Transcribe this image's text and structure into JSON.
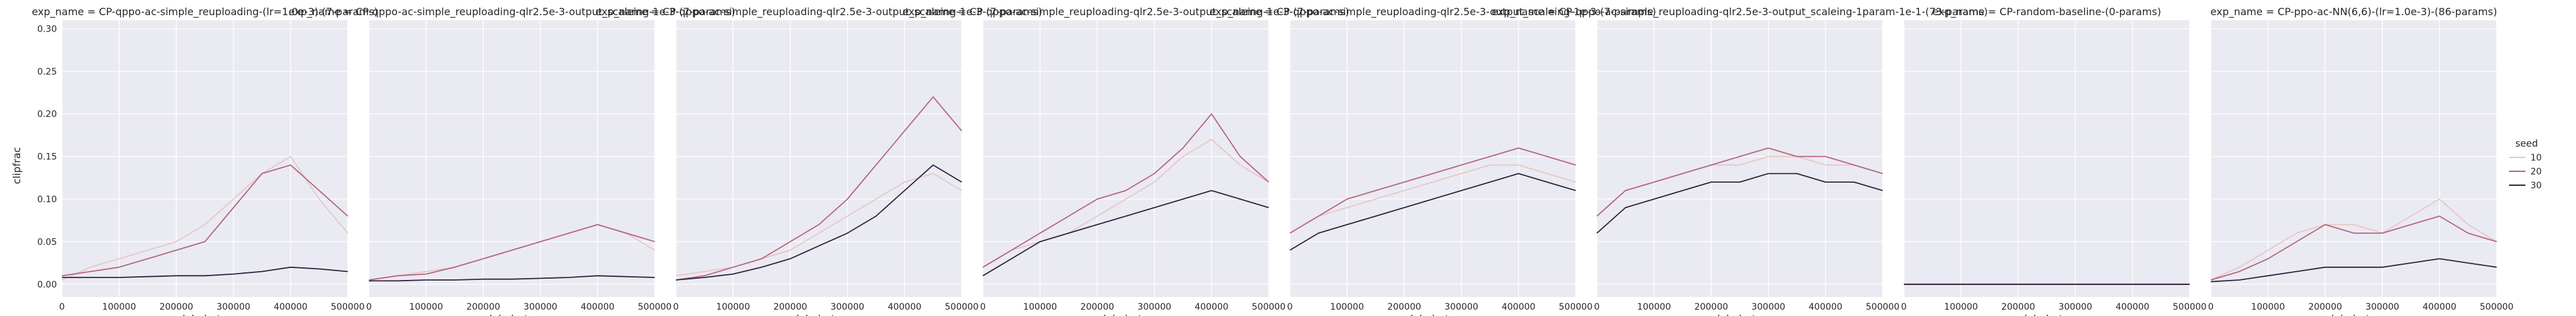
{
  "chart_data": {
    "type": "line",
    "facet_label": "exp_name",
    "xlabel": "global_step",
    "ylabel": "clipfrac",
    "xlim": [
      0,
      500000
    ],
    "ylim": [
      -0.015,
      0.31
    ],
    "xticks": [
      0,
      100000,
      200000,
      300000,
      400000,
      500000
    ],
    "xtick_labels": [
      "0",
      "100000",
      "200000",
      "300000",
      "400000",
      "500000"
    ],
    "yticks": [
      0.0,
      0.05,
      0.1,
      0.15,
      0.2,
      0.25,
      0.3
    ],
    "ytick_labels": [
      "0.00",
      "0.05",
      "0.10",
      "0.15",
      "0.20",
      "0.25",
      "0.30"
    ],
    "grid": true,
    "legend": {
      "title": "seed",
      "placement": "right",
      "entries": [
        {
          "label": "10",
          "color": "#e8c6c0"
        },
        {
          "label": "20",
          "color": "#b5617f"
        },
        {
          "label": "30",
          "color": "#2e1e3b"
        }
      ]
    },
    "panels": [
      {
        "title": "exp_name = CP-qppo-ac-simple_reuploading-(lr=1.0e-3)-(7-params)",
        "series": [
          {
            "seed": "10",
            "x": [
              0,
              50000,
              100000,
              150000,
              200000,
              250000,
              300000,
              350000,
              400000,
              450000,
              500000
            ],
            "y": [
              0.005,
              0.02,
              0.03,
              0.04,
              0.05,
              0.07,
              0.1,
              0.13,
              0.15,
              0.1,
              0.06
            ]
          },
          {
            "seed": "20",
            "x": [
              0,
              50000,
              100000,
              150000,
              200000,
              250000,
              300000,
              350000,
              400000,
              450000,
              500000
            ],
            "y": [
              0.01,
              0.015,
              0.02,
              0.03,
              0.04,
              0.05,
              0.09,
              0.13,
              0.14,
              0.11,
              0.08
            ]
          },
          {
            "seed": "30",
            "x": [
              0,
              50000,
              100000,
              150000,
              200000,
              250000,
              300000,
              350000,
              400000,
              450000,
              500000
            ],
            "y": [
              0.008,
              0.008,
              0.008,
              0.009,
              0.01,
              0.01,
              0.012,
              0.015,
              0.02,
              0.018,
              0.015
            ]
          }
        ]
      },
      {
        "title": "exp_name = CP-qppo-ac-simple_reuploading-qlr2.5e-3-output_scaleing-1e-3-(7-params)",
        "series": [
          {
            "seed": "10",
            "x": [
              0,
              50000,
              100000,
              150000,
              200000,
              250000,
              300000,
              350000,
              400000,
              450000,
              500000
            ],
            "y": [
              0.005,
              0.01,
              0.015,
              0.02,
              0.03,
              0.04,
              0.05,
              0.06,
              0.07,
              0.06,
              0.04
            ]
          },
          {
            "seed": "20",
            "x": [
              0,
              50000,
              100000,
              150000,
              200000,
              250000,
              300000,
              350000,
              400000,
              450000,
              500000
            ],
            "y": [
              0.005,
              0.01,
              0.012,
              0.02,
              0.03,
              0.04,
              0.05,
              0.06,
              0.07,
              0.06,
              0.05
            ]
          },
          {
            "seed": "30",
            "x": [
              0,
              50000,
              100000,
              150000,
              200000,
              250000,
              300000,
              350000,
              400000,
              450000,
              500000
            ],
            "y": [
              0.004,
              0.004,
              0.005,
              0.005,
              0.006,
              0.006,
              0.007,
              0.008,
              0.01,
              0.009,
              0.008
            ]
          }
        ]
      },
      {
        "title": "exp_name = CP-qppo-ac-simple_reuploading-qlr2.5e-3-output_scaleing-1e-3-(7-params)",
        "series": [
          {
            "seed": "10",
            "x": [
              0,
              50000,
              100000,
              150000,
              200000,
              250000,
              300000,
              350000,
              400000,
              450000,
              500000
            ],
            "y": [
              0.01,
              0.015,
              0.02,
              0.03,
              0.04,
              0.06,
              0.08,
              0.1,
              0.12,
              0.13,
              0.11
            ]
          },
          {
            "seed": "20",
            "x": [
              0,
              50000,
              100000,
              150000,
              200000,
              250000,
              300000,
              350000,
              400000,
              450000,
              500000
            ],
            "y": [
              0.005,
              0.01,
              0.02,
              0.03,
              0.05,
              0.07,
              0.1,
              0.14,
              0.18,
              0.22,
              0.18
            ]
          },
          {
            "seed": "30",
            "x": [
              0,
              50000,
              100000,
              150000,
              200000,
              250000,
              300000,
              350000,
              400000,
              450000,
              500000
            ],
            "y": [
              0.005,
              0.008,
              0.012,
              0.02,
              0.03,
              0.045,
              0.06,
              0.08,
              0.11,
              0.14,
              0.12
            ]
          }
        ]
      },
      {
        "title": "exp_name = CP-qppo-ac-simple_reuploading-qlr2.5e-3-output_scaleing-1e-3-(7-params)",
        "series": [
          {
            "seed": "10",
            "x": [
              0,
              50000,
              100000,
              150000,
              200000,
              250000,
              300000,
              350000,
              400000,
              450000,
              500000
            ],
            "y": [
              0.02,
              0.04,
              0.05,
              0.06,
              0.08,
              0.1,
              0.12,
              0.15,
              0.17,
              0.14,
              0.12
            ]
          },
          {
            "seed": "20",
            "x": [
              0,
              50000,
              100000,
              150000,
              200000,
              250000,
              300000,
              350000,
              400000,
              450000,
              500000
            ],
            "y": [
              0.02,
              0.04,
              0.06,
              0.08,
              0.1,
              0.11,
              0.13,
              0.16,
              0.2,
              0.15,
              0.12
            ]
          },
          {
            "seed": "30",
            "x": [
              0,
              50000,
              100000,
              150000,
              200000,
              250000,
              300000,
              350000,
              400000,
              450000,
              500000
            ],
            "y": [
              0.01,
              0.03,
              0.05,
              0.06,
              0.07,
              0.08,
              0.09,
              0.1,
              0.11,
              0.1,
              0.09
            ]
          }
        ]
      },
      {
        "title": "exp_name = CP-qppo-ac-simple_reuploading-qlr2.5e-3-output_scaleing-1e-3-(7-params)",
        "series": [
          {
            "seed": "10",
            "x": [
              0,
              50000,
              100000,
              150000,
              200000,
              250000,
              300000,
              350000,
              400000,
              450000,
              500000
            ],
            "y": [
              0.06,
              0.08,
              0.09,
              0.1,
              0.11,
              0.12,
              0.13,
              0.14,
              0.14,
              0.13,
              0.12
            ]
          },
          {
            "seed": "20",
            "x": [
              0,
              50000,
              100000,
              150000,
              200000,
              250000,
              300000,
              350000,
              400000,
              450000,
              500000
            ],
            "y": [
              0.06,
              0.08,
              0.1,
              0.11,
              0.12,
              0.13,
              0.14,
              0.15,
              0.16,
              0.15,
              0.14
            ]
          },
          {
            "seed": "30",
            "x": [
              0,
              50000,
              100000,
              150000,
              200000,
              250000,
              300000,
              350000,
              400000,
              450000,
              500000
            ],
            "y": [
              0.04,
              0.06,
              0.07,
              0.08,
              0.09,
              0.1,
              0.11,
              0.12,
              0.13,
              0.12,
              0.11
            ]
          }
        ]
      },
      {
        "title": "exp_name = CP-qppo-ac-simple_reuploading-qlr2.5e-3-output_scaleing-1param-1e-1-(73-params)",
        "series": [
          {
            "seed": "10",
            "x": [
              0,
              50000,
              100000,
              150000,
              200000,
              250000,
              300000,
              350000,
              400000,
              450000,
              500000
            ],
            "y": [
              0.08,
              0.11,
              0.12,
              0.13,
              0.14,
              0.14,
              0.15,
              0.15,
              0.14,
              0.14,
              0.13
            ]
          },
          {
            "seed": "20",
            "x": [
              0,
              50000,
              100000,
              150000,
              200000,
              250000,
              300000,
              350000,
              400000,
              450000,
              500000
            ],
            "y": [
              0.08,
              0.11,
              0.12,
              0.13,
              0.14,
              0.15,
              0.16,
              0.15,
              0.15,
              0.14,
              0.13
            ]
          },
          {
            "seed": "30",
            "x": [
              0,
              50000,
              100000,
              150000,
              200000,
              250000,
              300000,
              350000,
              400000,
              450000,
              500000
            ],
            "y": [
              0.06,
              0.09,
              0.1,
              0.11,
              0.12,
              0.12,
              0.13,
              0.13,
              0.12,
              0.12,
              0.11
            ]
          }
        ]
      },
      {
        "title": "exp_name = CP-random-baseline-(0-params)",
        "series": [
          {
            "seed": "10",
            "x": [
              0,
              500000
            ],
            "y": [
              0.0,
              0.0
            ]
          },
          {
            "seed": "20",
            "x": [
              0,
              500000
            ],
            "y": [
              0.0,
              0.0
            ]
          },
          {
            "seed": "30",
            "x": [
              0,
              500000
            ],
            "y": [
              0.0,
              0.0
            ]
          }
        ]
      },
      {
        "title": "exp_name = CP-ppo-ac-NN(6,6)-(lr=1.0e-3)-(86-params)",
        "series": [
          {
            "seed": "10",
            "x": [
              0,
              50000,
              100000,
              150000,
              200000,
              250000,
              300000,
              350000,
              400000,
              450000,
              500000
            ],
            "y": [
              0.005,
              0.02,
              0.04,
              0.06,
              0.07,
              0.07,
              0.06,
              0.08,
              0.1,
              0.07,
              0.05
            ]
          },
          {
            "seed": "20",
            "x": [
              0,
              50000,
              100000,
              150000,
              200000,
              250000,
              300000,
              350000,
              400000,
              450000,
              500000
            ],
            "y": [
              0.005,
              0.015,
              0.03,
              0.05,
              0.07,
              0.06,
              0.06,
              0.07,
              0.08,
              0.06,
              0.05
            ]
          },
          {
            "seed": "30",
            "x": [
              0,
              50000,
              100000,
              150000,
              200000,
              250000,
              300000,
              350000,
              400000,
              450000,
              500000
            ],
            "y": [
              0.003,
              0.005,
              0.01,
              0.015,
              0.02,
              0.02,
              0.02,
              0.025,
              0.03,
              0.025,
              0.02
            ]
          }
        ]
      }
    ]
  }
}
